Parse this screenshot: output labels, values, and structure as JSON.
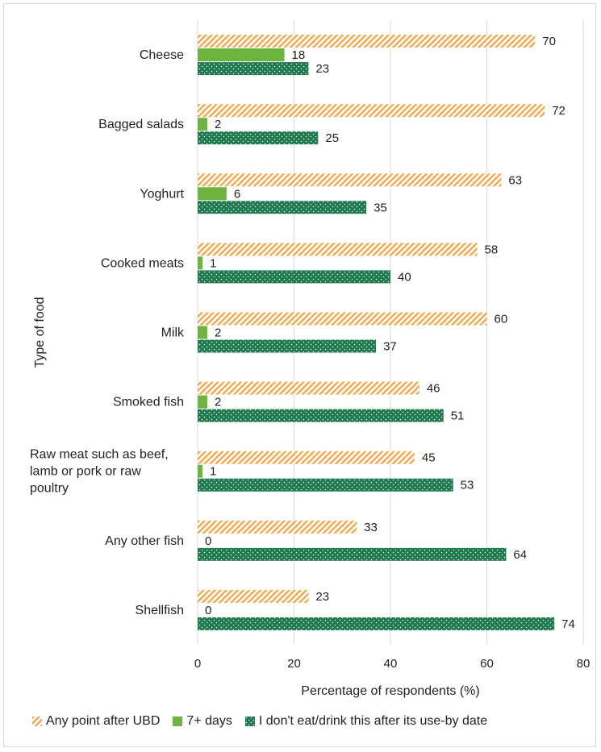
{
  "chart_data": {
    "type": "bar",
    "orientation": "horizontal",
    "title": "",
    "ylabel": "Type of food",
    "xlabel": "Percentage of respondents (%)",
    "xlim": [
      0,
      80
    ],
    "xticks": [
      0,
      20,
      40,
      60,
      80
    ],
    "grid": true,
    "legend_position": "bottom",
    "categories": [
      [
        "Cheese"
      ],
      [
        "Bagged salads"
      ],
      [
        "Yoghurt"
      ],
      [
        "Cooked meats"
      ],
      [
        "Milk"
      ],
      [
        "Smoked fish"
      ],
      [
        "Raw meat such as beef,",
        "lamb or pork or raw",
        "poultry"
      ],
      [
        "Any other fish"
      ],
      [
        "Shellfish"
      ]
    ],
    "series": [
      {
        "name": "Any point after UBD",
        "color": "#f0a84e",
        "pattern": "diagonal-hatch",
        "values": [
          70,
          72,
          63,
          58,
          60,
          46,
          45,
          33,
          23
        ]
      },
      {
        "name": "7+ days",
        "color": "#6db33f",
        "pattern": "solid",
        "values": [
          18,
          2,
          6,
          1,
          2,
          2,
          1,
          0,
          0
        ]
      },
      {
        "name": "I don't eat/drink this after its use-by date",
        "color": "#1e7a4f",
        "pattern": "dots",
        "values": [
          23,
          25,
          35,
          40,
          37,
          51,
          53,
          64,
          74
        ]
      }
    ]
  }
}
